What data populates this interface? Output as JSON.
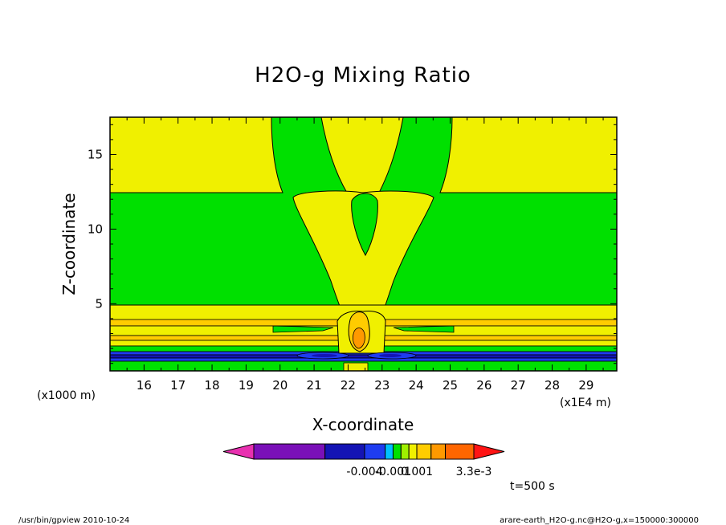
{
  "chart_data": {
    "type": "contour",
    "title": "H2O-g Mixing Ratio",
    "xlabel": "X-coordinate",
    "ylabel": "Z-coordinate",
    "x_unit": "(x1E4 m)",
    "y_unit": "(x1000 m)",
    "x_ticks": [
      16,
      17,
      18,
      19,
      20,
      21,
      22,
      23,
      24,
      25,
      26,
      27,
      28,
      29
    ],
    "y_ticks": [
      5,
      10,
      15
    ],
    "xlim": [
      15,
      29.9
    ],
    "ylim": [
      0.5,
      17.5
    ],
    "colorbar": {
      "colors": [
        "#e830b0",
        "#7a10b8",
        "#1414b4",
        "#1e3cf0",
        "#00c0ff",
        "#00e000",
        "#a0f000",
        "#f0f000",
        "#ffcc00",
        "#ff9900",
        "#ff6600",
        "#ff1414"
      ],
      "tick_labels": [
        "-0.004",
        "-0.001",
        "0.001",
        "3.3e-3"
      ]
    },
    "time_label": "t=500 s",
    "footer_left": "/usr/bin/gpview   2010-10-24",
    "footer_right": "arare-earth_H2O-g.nc@H2O-g,x=150000:300000"
  }
}
